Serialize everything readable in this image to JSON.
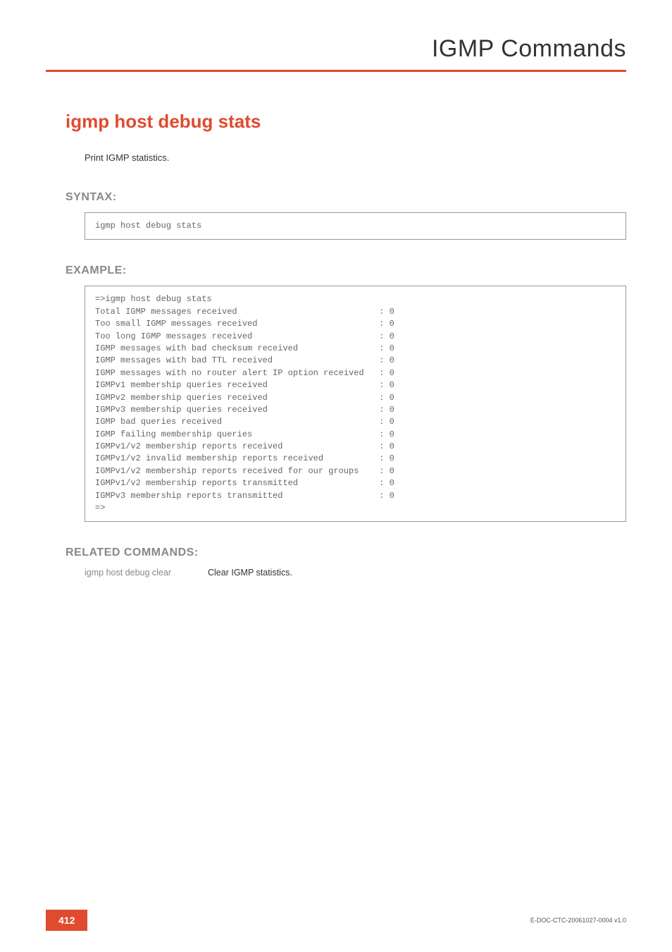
{
  "chapter_title": "IGMP Commands",
  "command_title": "igmp host debug stats",
  "description": "Print IGMP statistics.",
  "sections": {
    "syntax_heading": "SYNTAX:",
    "example_heading": "EXAMPLE:",
    "related_heading": "RELATED COMMANDS:"
  },
  "syntax_code": "igmp host debug stats",
  "example_code": "=>igmp host debug stats\nTotal IGMP messages received                            : 0\nToo small IGMP messages received                        : 0\nToo long IGMP messages received                         : 0\nIGMP messages with bad checksum received                : 0\nIGMP messages with bad TTL received                     : 0\nIGMP messages with no router alert IP option received   : 0\nIGMPv1 membership queries received                      : 0\nIGMPv2 membership queries received                      : 0\nIGMPv3 membership queries received                      : 0\nIGMP bad queries received                               : 0\nIGMP failing membership queries                         : 0\nIGMPv1/v2 membership reports received                   : 0\nIGMPv1/v2 invalid membership reports received           : 0\nIGMPv1/v2 membership reports received for our groups    : 0\nIGMPv1/v2 membership reports transmitted                : 0\nIGMPv3 membership reports transmitted                   : 0\n=>",
  "related": {
    "cmd": "igmp host debug clear",
    "desc": "Clear IGMP statistics."
  },
  "footer": {
    "page_number": "412",
    "doc_id": "E-DOC-CTC-20061027-0004 v1.0"
  },
  "colors": {
    "accent": "#e04b2f",
    "heading_gray": "#888888",
    "text": "#333333",
    "code_text": "#666666",
    "border": "#999999"
  }
}
